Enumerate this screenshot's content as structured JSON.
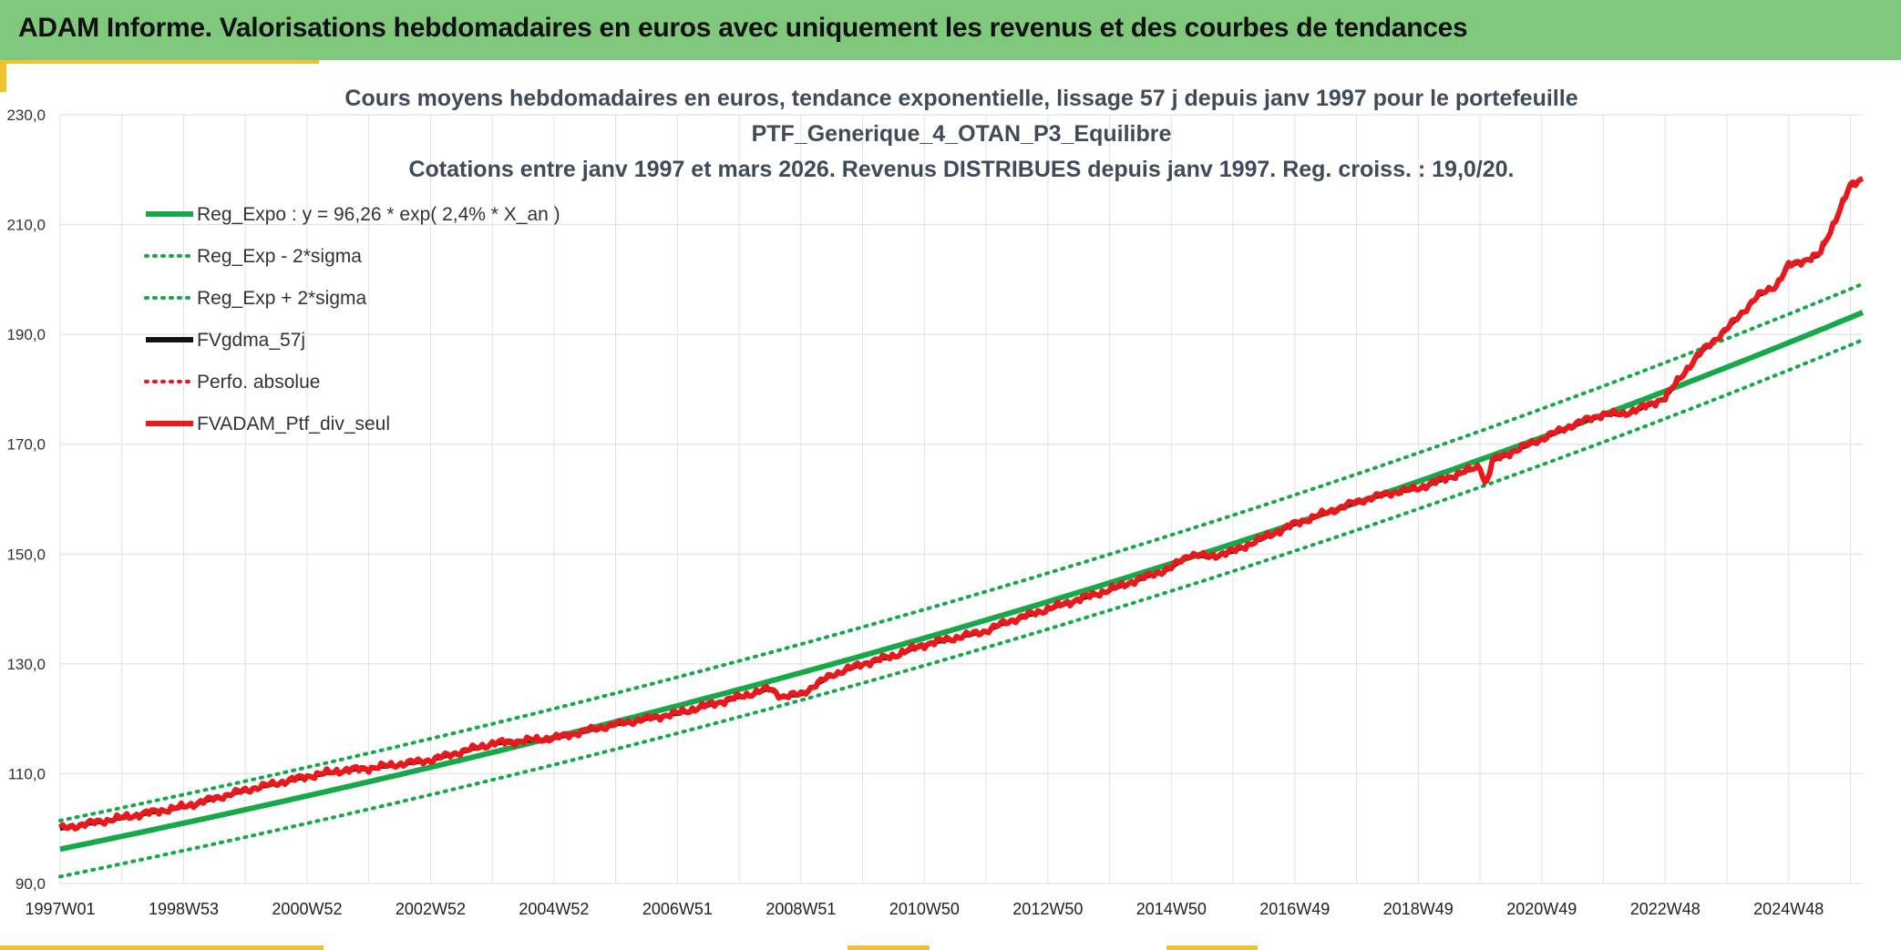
{
  "header": {
    "title": "ADAM Informe. Valorisations hebdomadaires en euros avec uniquement les revenus et des courbes de tendances"
  },
  "colors": {
    "header_bg": "#7fc87c",
    "accent": "#f2c12e",
    "reg": "#17a84a",
    "perf": "#e8191c",
    "gdma": "#111111",
    "title_text": "#404a5a"
  },
  "chart_data": {
    "type": "line",
    "title_lines": [
      "Cours moyens hebdomadaires en euros, tendance exponentielle, lissage 57 j depuis janv 1997 pour le portefeuille",
      "PTF_Generique_4_OTAN_P3_Equilibre",
      "Cotations entre janv 1997 et mars 2026. Revenus DISTRIBUES depuis janv 1997. Reg. croiss. : 19,0/20."
    ],
    "x_range": [
      1997.0,
      2026.2
    ],
    "x_ticks": [
      {
        "label": "1997W01",
        "x": 1997.0
      },
      {
        "label": "1998W53",
        "x": 1999.0
      },
      {
        "label": "2000W52",
        "x": 2001.0
      },
      {
        "label": "2002W52",
        "x": 2003.0
      },
      {
        "label": "2004W52",
        "x": 2005.0
      },
      {
        "label": "2006W51",
        "x": 2007.0
      },
      {
        "label": "2008W51",
        "x": 2009.0
      },
      {
        "label": "2010W50",
        "x": 2011.0
      },
      {
        "label": "2012W50",
        "x": 2013.0
      },
      {
        "label": "2014W50",
        "x": 2015.0
      },
      {
        "label": "2016W49",
        "x": 2017.0
      },
      {
        "label": "2018W49",
        "x": 2019.0
      },
      {
        "label": "2020W49",
        "x": 2021.0
      },
      {
        "label": "2022W48",
        "x": 2023.0
      },
      {
        "label": "2024W48",
        "x": 2025.0
      }
    ],
    "ylim": [
      90,
      230
    ],
    "y_ticks": [
      "90,0",
      "110,0",
      "130,0",
      "150,0",
      "170,0",
      "190,0",
      "210,0",
      "230,0"
    ],
    "legend": [
      {
        "label": "Reg_Expo : y = 96,26 * exp( 2,4% *  X_an )",
        "color": "#17a84a",
        "style": "solid"
      },
      {
        "label": "Reg_Exp - 2*sigma",
        "color": "#17a84a",
        "style": "dotted"
      },
      {
        "label": "Reg_Exp + 2*sigma",
        "color": "#17a84a",
        "style": "dotted"
      },
      {
        "label": "FVgdma_57j",
        "color": "#111111",
        "style": "solid"
      },
      {
        "label": "Perfo. absolue",
        "color": "#e8191c",
        "style": "dotted"
      },
      {
        "label": "FVADAM_Ptf_div_seul",
        "color": "#e8191c",
        "style": "solid"
      }
    ],
    "series": [
      {
        "name": "Reg_Expo",
        "formula": "96.26*exp(0.024*t)",
        "values_at_ends": [
          96.3,
          195.8
        ]
      },
      {
        "name": "Reg_Exp - 2*sigma",
        "offset": -5.0
      },
      {
        "name": "Reg_Exp + 2*sigma",
        "offset": 5.2
      },
      {
        "name": "FVADAM_Ptf_div_seul",
        "x": [
          1997.0,
          1997.5,
          1998.0,
          1999.0,
          2000.0,
          2001.0,
          2001.5,
          2002.0,
          2003.0,
          2004.0,
          2005.0,
          2006.0,
          2007.0,
          2007.5,
          2008.0,
          2008.5,
          2008.7,
          2009.0,
          2009.5,
          2010.0,
          2010.5,
          2011.0,
          2012.0,
          2012.3,
          2013.0,
          2014.0,
          2015.0,
          2015.3,
          2015.6,
          2016.0,
          2016.5,
          2017.0,
          2018.0,
          2018.5,
          2019.0,
          2019.5,
          2020.0,
          2020.1,
          2020.2,
          2020.5,
          2021.0,
          2021.5,
          2022.0,
          2022.3,
          2022.6,
          2023.0,
          2023.3,
          2023.6,
          2024.0,
          2024.5,
          2024.8,
          2025.0,
          2025.5,
          2026.0,
          2026.2
        ],
        "values": [
          100.0,
          101.0,
          102.0,
          104.0,
          107.0,
          109.5,
          110.5,
          111.0,
          112.5,
          115.5,
          116.5,
          119.0,
          121.0,
          122.5,
          124.0,
          125.5,
          124.0,
          124.5,
          128.0,
          130.0,
          131.5,
          133.5,
          136.0,
          137.5,
          140.0,
          143.5,
          147.5,
          150.0,
          149.5,
          150.5,
          153.0,
          155.5,
          159.5,
          161.0,
          162.0,
          164.0,
          166.0,
          162.5,
          167.0,
          168.5,
          171.0,
          173.5,
          175.5,
          175.5,
          176.5,
          178.5,
          183.0,
          187.0,
          191.0,
          197.0,
          199.0,
          202.5,
          204.5,
          217.0,
          218.5
        ]
      }
    ]
  }
}
